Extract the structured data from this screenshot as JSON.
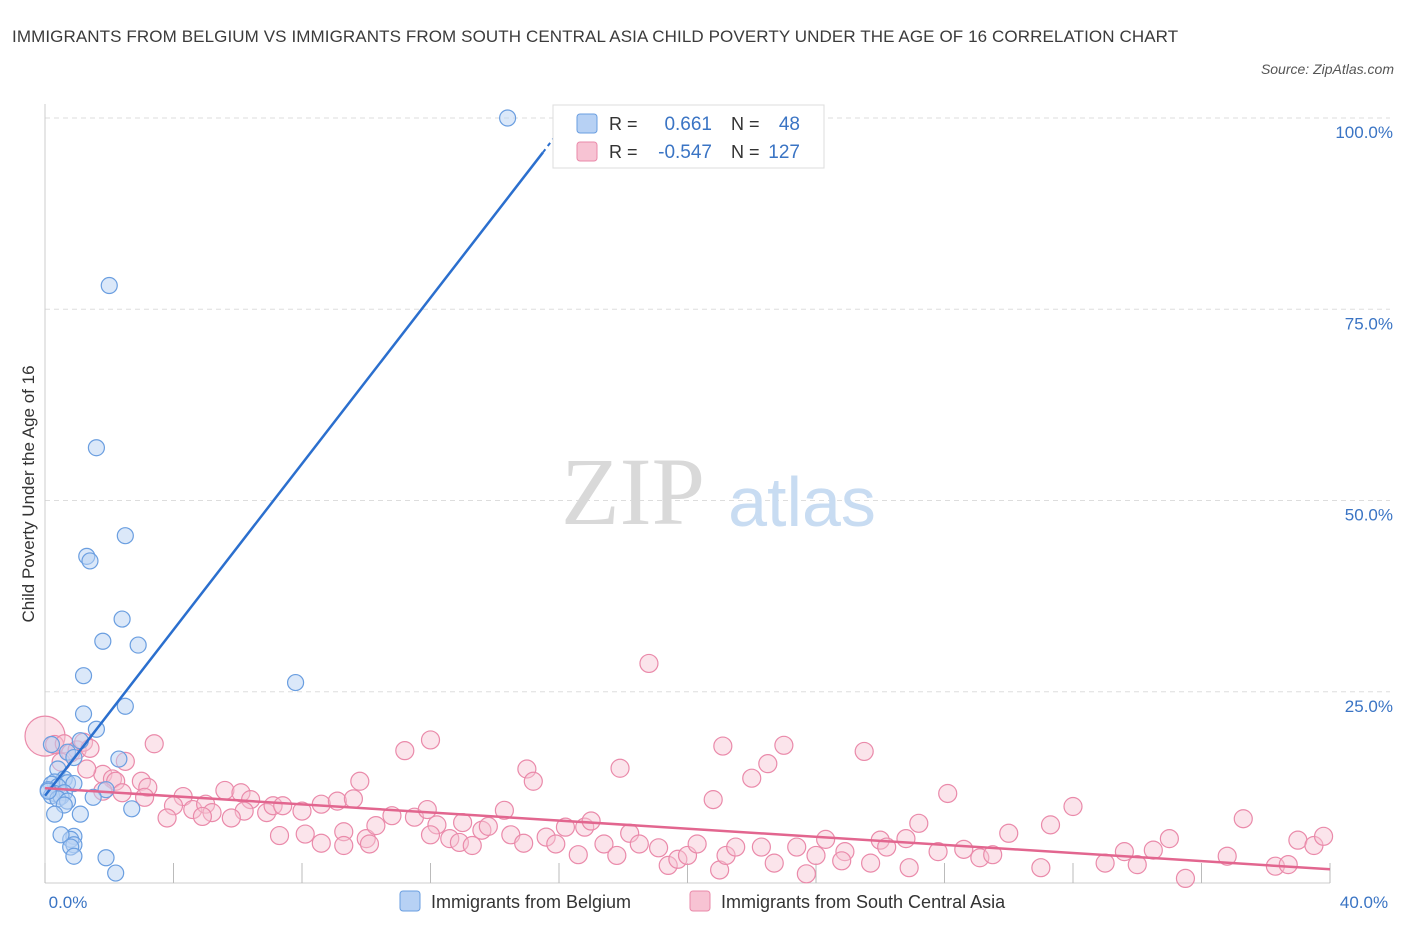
{
  "header": {
    "title": "IMMIGRANTS FROM BELGIUM VS IMMIGRANTS FROM SOUTH CENTRAL ASIA CHILD POVERTY UNDER THE AGE OF 16 CORRELATION CHART",
    "source": "Source: ZipAtlas.com"
  },
  "watermark": {
    "zip": "ZIP",
    "atlas": "atlas"
  },
  "colors": {
    "belgium_fill": "#b7d1f4",
    "belgium_stroke": "#6a9ee0",
    "belgium_line": "#2b6fce",
    "asia_fill": "#f7c3d3",
    "asia_stroke": "#ea8aaa",
    "asia_line": "#e2668f",
    "value_text": "#3a74c4",
    "grid": "#dddddd"
  },
  "legend_box": {
    "rows": [
      {
        "r_label": "R =",
        "r_value": "0.661",
        "n_label": "N =",
        "n_value": "48"
      },
      {
        "r_label": "R =",
        "r_value": "-0.547",
        "n_label": "N =",
        "n_value": "127"
      }
    ]
  },
  "chart_data": {
    "type": "scatter",
    "title": "IMMIGRANTS FROM BELGIUM VS IMMIGRANTS FROM SOUTH CENTRAL ASIA CHILD POVERTY UNDER THE AGE OF 16 CORRELATION CHART",
    "xlabel": "",
    "ylabel": "Child Poverty Under the Age of 16",
    "xlim": [
      0,
      40
    ],
    "ylim": [
      0,
      100
    ],
    "x_tick_labels": [
      {
        "value": 0,
        "label": "0.0%"
      },
      {
        "value": 40,
        "label": "40.0%"
      }
    ],
    "y_tick_labels": [
      {
        "value": 100,
        "label": "100.0%"
      },
      {
        "value": 75,
        "label": "75.0%"
      },
      {
        "value": 50,
        "label": "50.0%"
      },
      {
        "value": 25,
        "label": "25.0%"
      }
    ],
    "legend": [
      "Immigrants from Belgium",
      "Immigrants from South Central Asia"
    ],
    "series": [
      {
        "name": "Immigrants from Belgium",
        "r": 0.661,
        "n": 48,
        "trend": {
          "x0": 0.0,
          "y0": 11.4,
          "x1": 15.5,
          "y1": 95.5,
          "dash_to_x": 16.2,
          "dash_to_y": 99.4
        },
        "points": [
          [
            14.4,
            100.0
          ],
          [
            2.0,
            78.1
          ],
          [
            1.6,
            56.9
          ],
          [
            2.5,
            45.4
          ],
          [
            1.3,
            42.7
          ],
          [
            1.4,
            42.1
          ],
          [
            2.4,
            34.5
          ],
          [
            1.8,
            31.6
          ],
          [
            2.9,
            31.1
          ],
          [
            1.2,
            27.1
          ],
          [
            7.8,
            26.2
          ],
          [
            2.5,
            23.1
          ],
          [
            1.2,
            22.1
          ],
          [
            1.6,
            20.1
          ],
          [
            1.1,
            18.6
          ],
          [
            2.3,
            16.2
          ],
          [
            0.2,
            18.1
          ],
          [
            0.7,
            17.1
          ],
          [
            0.4,
            14.9
          ],
          [
            0.9,
            16.4
          ],
          [
            0.6,
            13.6
          ],
          [
            0.3,
            13.2
          ],
          [
            0.7,
            13.1
          ],
          [
            0.2,
            12.9
          ],
          [
            0.9,
            13.0
          ],
          [
            0.4,
            12.6
          ],
          [
            0.1,
            12.2
          ],
          [
            0.3,
            11.7
          ],
          [
            0.6,
            11.8
          ],
          [
            0.2,
            11.4
          ],
          [
            0.5,
            11.3
          ],
          [
            0.4,
            11.0
          ],
          [
            0.7,
            10.7
          ],
          [
            0.1,
            12.0
          ],
          [
            1.9,
            12.2
          ],
          [
            1.5,
            11.2
          ],
          [
            0.6,
            10.2
          ],
          [
            2.7,
            9.7
          ],
          [
            0.3,
            9.0
          ],
          [
            1.1,
            9.0
          ],
          [
            0.9,
            6.1
          ],
          [
            0.8,
            5.7
          ],
          [
            0.5,
            6.3
          ],
          [
            0.9,
            5.0
          ],
          [
            0.8,
            4.7
          ],
          [
            1.9,
            3.3
          ],
          [
            0.9,
            3.5
          ],
          [
            2.2,
            1.3
          ]
        ]
      },
      {
        "name": "Immigrants from South Central Asia",
        "r": -0.547,
        "n": 127,
        "trend": {
          "x0": 0.0,
          "y0": 12.4,
          "x1": 40.0,
          "y1": 1.8
        },
        "points": [
          [
            0.0,
            19.2
          ],
          [
            0.3,
            18.1
          ],
          [
            0.6,
            18.2
          ],
          [
            0.8,
            17.0
          ],
          [
            1.0,
            17.4
          ],
          [
            1.2,
            18.4
          ],
          [
            1.4,
            17.6
          ],
          [
            1.8,
            14.2
          ],
          [
            2.1,
            13.6
          ],
          [
            2.5,
            15.9
          ],
          [
            3.4,
            18.2
          ],
          [
            2.2,
            13.3
          ],
          [
            3.0,
            13.3
          ],
          [
            3.2,
            12.5
          ],
          [
            2.4,
            11.8
          ],
          [
            3.1,
            11.2
          ],
          [
            4.3,
            11.3
          ],
          [
            4.0,
            10.1
          ],
          [
            4.6,
            9.6
          ],
          [
            5.0,
            10.3
          ],
          [
            5.6,
            12.1
          ],
          [
            5.2,
            9.2
          ],
          [
            6.1,
            11.8
          ],
          [
            6.4,
            10.9
          ],
          [
            6.2,
            9.4
          ],
          [
            5.8,
            8.5
          ],
          [
            3.8,
            8.5
          ],
          [
            6.9,
            9.2
          ],
          [
            7.1,
            10.1
          ],
          [
            7.4,
            10.1
          ],
          [
            7.3,
            6.2
          ],
          [
            8.0,
            9.4
          ],
          [
            8.1,
            6.4
          ],
          [
            8.6,
            10.3
          ],
          [
            9.1,
            10.7
          ],
          [
            9.6,
            11.0
          ],
          [
            9.8,
            13.3
          ],
          [
            9.3,
            6.7
          ],
          [
            10.0,
            5.8
          ],
          [
            10.3,
            7.5
          ],
          [
            10.8,
            8.8
          ],
          [
            11.2,
            17.3
          ],
          [
            11.5,
            8.6
          ],
          [
            11.9,
            9.6
          ],
          [
            12.2,
            7.6
          ],
          [
            12.0,
            6.3
          ],
          [
            12.6,
            5.8
          ],
          [
            12.9,
            5.3
          ],
          [
            13.3,
            4.9
          ],
          [
            13.0,
            7.9
          ],
          [
            13.6,
            6.9
          ],
          [
            13.8,
            7.4
          ],
          [
            14.3,
            9.5
          ],
          [
            14.5,
            6.3
          ],
          [
            14.9,
            5.2
          ],
          [
            15.0,
            14.9
          ],
          [
            15.2,
            13.3
          ],
          [
            15.6,
            6.0
          ],
          [
            15.9,
            5.1
          ],
          [
            16.2,
            7.3
          ],
          [
            16.6,
            3.7
          ],
          [
            16.8,
            7.3
          ],
          [
            17.0,
            8.1
          ],
          [
            17.4,
            5.1
          ],
          [
            17.8,
            3.6
          ],
          [
            18.2,
            6.5
          ],
          [
            18.8,
            28.7
          ],
          [
            17.9,
            15.0
          ],
          [
            18.5,
            5.1
          ],
          [
            19.1,
            4.6
          ],
          [
            19.4,
            2.3
          ],
          [
            19.7,
            3.1
          ],
          [
            20.0,
            3.6
          ],
          [
            20.3,
            5.1
          ],
          [
            20.8,
            10.9
          ],
          [
            21.0,
            1.7
          ],
          [
            21.2,
            3.6
          ],
          [
            21.5,
            4.7
          ],
          [
            22.0,
            13.7
          ],
          [
            22.3,
            4.7
          ],
          [
            22.5,
            15.6
          ],
          [
            22.7,
            2.6
          ],
          [
            23.0,
            18.0
          ],
          [
            23.4,
            4.7
          ],
          [
            23.7,
            1.2
          ],
          [
            24.0,
            3.6
          ],
          [
            24.3,
            5.7
          ],
          [
            24.9,
            4.1
          ],
          [
            25.5,
            17.2
          ],
          [
            25.7,
            2.6
          ],
          [
            26.0,
            5.6
          ],
          [
            26.2,
            4.7
          ],
          [
            26.8,
            5.8
          ],
          [
            27.2,
            7.8
          ],
          [
            27.8,
            4.1
          ],
          [
            28.1,
            11.7
          ],
          [
            28.6,
            4.4
          ],
          [
            29.1,
            3.3
          ],
          [
            29.5,
            3.7
          ],
          [
            30.0,
            6.5
          ],
          [
            31.0,
            2.0
          ],
          [
            31.3,
            7.6
          ],
          [
            32.0,
            10.0
          ],
          [
            33.0,
            2.6
          ],
          [
            33.6,
            4.1
          ],
          [
            34.0,
            2.4
          ],
          [
            34.5,
            4.3
          ],
          [
            35.0,
            5.8
          ],
          [
            35.5,
            0.6
          ],
          [
            36.8,
            3.5
          ],
          [
            37.3,
            8.4
          ],
          [
            38.3,
            2.2
          ],
          [
            38.7,
            2.4
          ],
          [
            39.0,
            5.6
          ],
          [
            39.5,
            4.9
          ],
          [
            39.8,
            6.1
          ],
          [
            12.0,
            18.7
          ],
          [
            21.1,
            17.9
          ],
          [
            0.5,
            15.8
          ],
          [
            1.8,
            12.0
          ],
          [
            4.9,
            8.7
          ],
          [
            8.6,
            5.2
          ],
          [
            9.3,
            4.9
          ],
          [
            10.1,
            5.1
          ],
          [
            24.8,
            2.9
          ],
          [
            26.9,
            2.0
          ],
          [
            1.3,
            14.9
          ]
        ]
      }
    ]
  }
}
